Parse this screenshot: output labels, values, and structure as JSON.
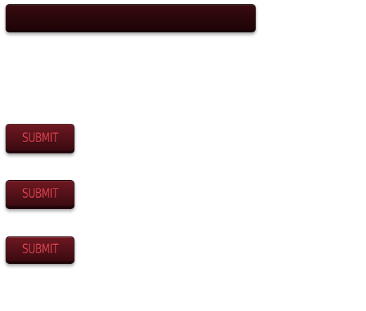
{
  "form": {
    "text_field": {
      "value": "",
      "placeholder": ""
    },
    "buttons": [
      {
        "label": "SUBMIT",
        "state": "normal"
      },
      {
        "label": "SUBMIT",
        "state": "hover"
      },
      {
        "label": "SUBMIT",
        "state": "active"
      }
    ]
  },
  "colors": {
    "field_background": "#2a070b",
    "button_background": "#58121a",
    "button_text": "#e0434e",
    "page_background": "#ffffff"
  }
}
